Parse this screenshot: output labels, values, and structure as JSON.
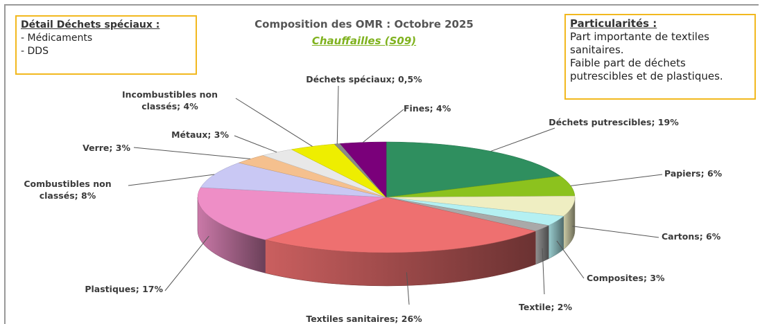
{
  "chart_data": {
    "type": "pie3d",
    "title": "Composition des OMR : Octobre 2025",
    "subtitle": "Chauffailles (S09)",
    "categories": [
      "Déchets putrescibles",
      "Papiers",
      "Cartons",
      "Composites",
      "Textile",
      "Textiles sanitaires",
      "Plastiques",
      "Combustibles non classés",
      "Verre",
      "Métaux",
      "Incombustibles non classés",
      "Déchets spéciaux",
      "Fines"
    ],
    "values": [
      19,
      6,
      6,
      3,
      2,
      26,
      17,
      8,
      3,
      3,
      4,
      0.5,
      4
    ],
    "value_labels": [
      "19%",
      "6%",
      "6%",
      "3%",
      "2%",
      "26%",
      "17%",
      "8%",
      "3%",
      "3%",
      "4%",
      "0,5%",
      "4%"
    ],
    "colors": [
      "#2f8f5f",
      "#8cc21e",
      "#efeec2",
      "#b4f0f2",
      "#a9a9a9",
      "#ee7070",
      "#ee8ec6",
      "#c9c8f4",
      "#f5c08e",
      "#e8e8e8",
      "#eeee00",
      "#8a8a8a",
      "#7a007a"
    ],
    "annotations": [
      {
        "title": "Détail Déchets spéciaux :",
        "lines": [
          "- Médicaments",
          "- DDS"
        ]
      },
      {
        "title": "Particularités :",
        "lines": [
          "Part importante de textiles sanitaires.",
          "Faible part de déchets putrescibles et de plastiques."
        ]
      }
    ]
  }
}
